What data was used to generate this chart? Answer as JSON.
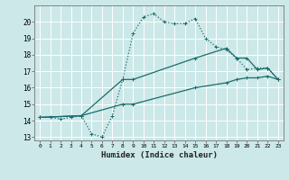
{
  "xlabel": "Humidex (Indice chaleur)",
  "background_color": "#cce8e8",
  "grid_color": "#ffffff",
  "line_color": "#1a6b6b",
  "xlim": [
    -0.5,
    23.5
  ],
  "ylim": [
    12.8,
    21.0
  ],
  "xticks": [
    0,
    1,
    2,
    3,
    4,
    5,
    6,
    7,
    8,
    9,
    10,
    11,
    12,
    13,
    14,
    15,
    16,
    17,
    18,
    19,
    20,
    21,
    22,
    23
  ],
  "yticks": [
    13,
    14,
    15,
    16,
    17,
    18,
    19,
    20
  ],
  "series": [
    {
      "x": [
        0,
        1,
        2,
        3,
        4,
        5,
        6,
        7,
        8,
        9,
        10,
        11,
        12,
        13,
        14,
        15,
        16,
        17,
        18,
        19,
        20,
        21,
        22,
        23
      ],
      "y": [
        14.2,
        14.2,
        14.1,
        14.2,
        14.3,
        13.2,
        13.0,
        14.3,
        16.5,
        19.3,
        20.3,
        20.5,
        20.0,
        19.9,
        19.9,
        20.2,
        19.0,
        18.5,
        18.3,
        17.8,
        17.1,
        17.2,
        17.2,
        16.5
      ],
      "style": "dotted"
    },
    {
      "x": [
        0,
        4,
        8,
        9,
        15,
        18,
        19,
        20,
        21,
        22,
        23
      ],
      "y": [
        14.2,
        14.3,
        16.5,
        16.5,
        17.8,
        18.4,
        17.8,
        17.8,
        17.1,
        17.2,
        16.5
      ],
      "style": "solid"
    },
    {
      "x": [
        0,
        4,
        8,
        9,
        15,
        18,
        19,
        20,
        21,
        22,
        23
      ],
      "y": [
        14.2,
        14.3,
        15.0,
        15.0,
        16.0,
        16.3,
        16.5,
        16.6,
        16.6,
        16.7,
        16.5
      ],
      "style": "solid"
    }
  ]
}
